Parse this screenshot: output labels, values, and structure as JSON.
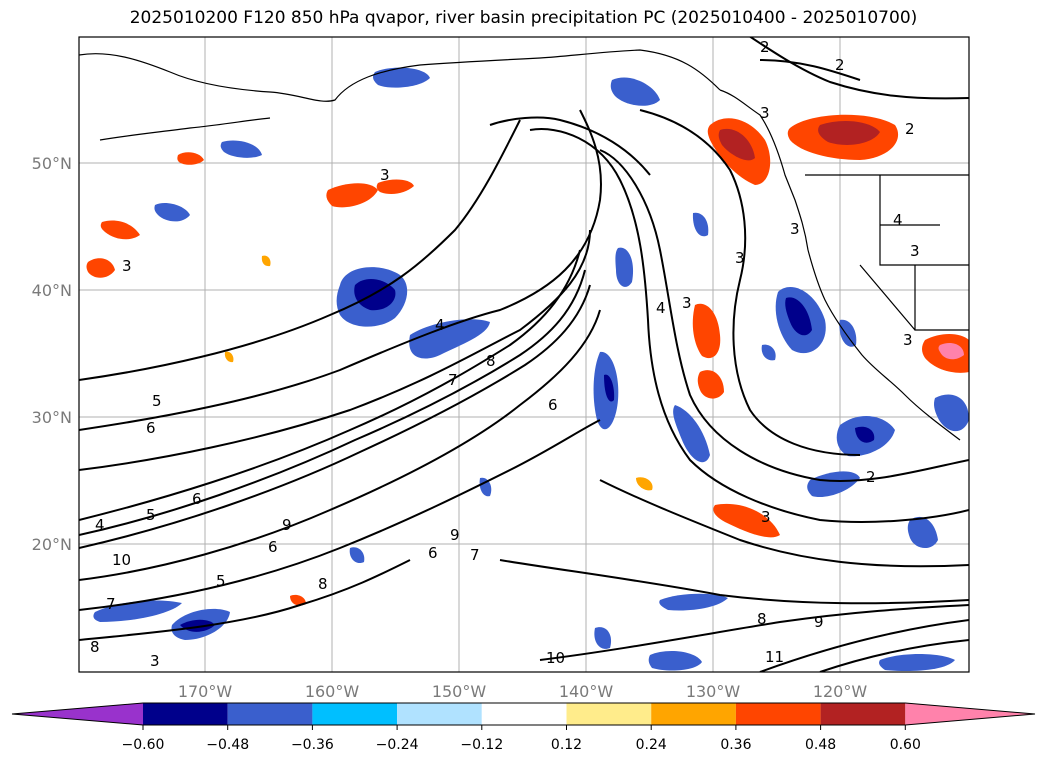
{
  "title": "2025010200 F120 850 hPa qvapor, river basin precipitation PC (2025010400 - 2025010700)",
  "lat_labels": [
    "50°N",
    "40°N",
    "30°N",
    "20°N"
  ],
  "lon_labels": [
    "170°W",
    "160°W",
    "150°W",
    "140°W",
    "130°W",
    "120°W"
  ],
  "colorbar": {
    "tick_labels": [
      "−0.60",
      "−0.48",
      "−0.36",
      "−0.24",
      "−0.12",
      "0.12",
      "0.24",
      "0.36",
      "0.48",
      "0.60"
    ],
    "colors": [
      "#9932CC",
      "#00008B",
      "#3A5FCD",
      "#00BFFF",
      "#B0E2FF",
      "#FFFFFF",
      "#FFEC8B",
      "#FFA500",
      "#FF4500",
      "#B22222",
      "#FF82AB"
    ]
  },
  "contour_labels": [
    "2",
    "2",
    "2",
    "3",
    "3",
    "3",
    "3",
    "3",
    "3",
    "3",
    "3",
    "4",
    "4",
    "4",
    "3",
    "5",
    "6",
    "6",
    "7",
    "8",
    "6",
    "4",
    "5",
    "6",
    "9",
    "10",
    "5",
    "7",
    "8",
    "8",
    "6",
    "9",
    "7",
    "8",
    "9",
    "10",
    "11",
    "2",
    "3"
  ],
  "colors": {
    "contour": "#000000",
    "land_outline": "#000000",
    "grid": "#b0b0b0",
    "tick_label": "#7a7a7a"
  }
}
